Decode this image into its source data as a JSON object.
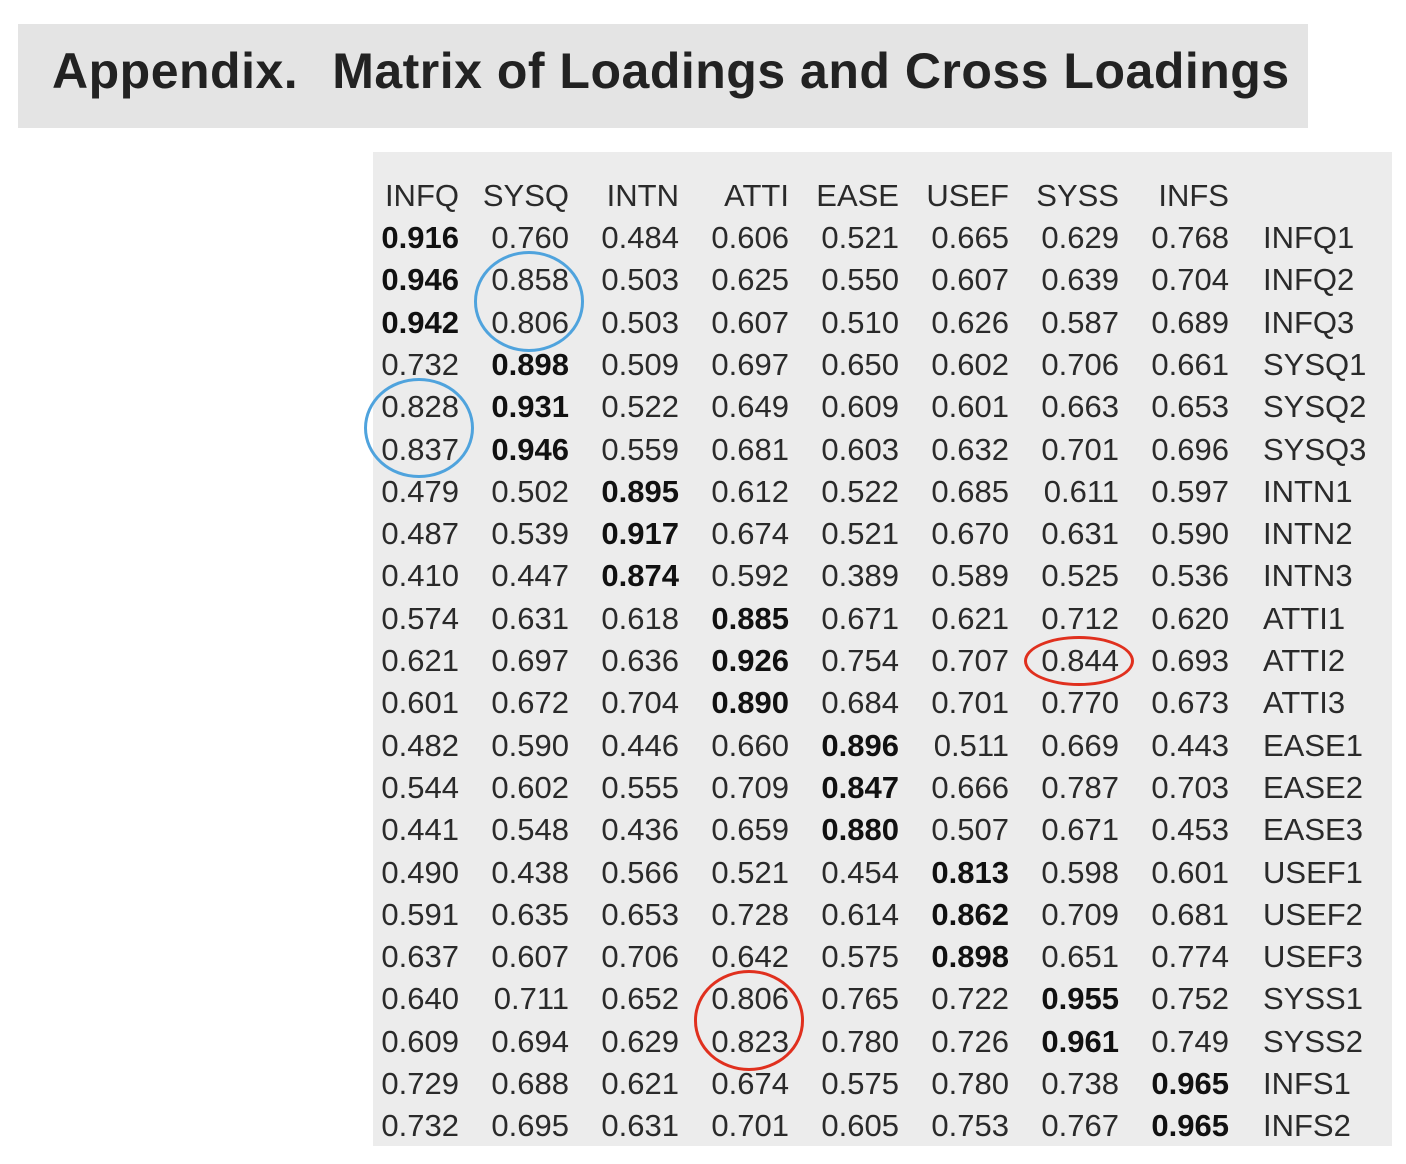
{
  "title": {
    "part_a": "Appendix.",
    "part_b": "Matrix of Loadings and Cross Loadings"
  },
  "table": {
    "headers": [
      "INFQ",
      "SYSQ",
      "INTN",
      "ATTI",
      "EASE",
      "USEF",
      "SYSS",
      "INFS"
    ],
    "rows": [
      {
        "label": "INFQ1",
        "values": [
          "0.916",
          "0.760",
          "0.484",
          "0.606",
          "0.521",
          "0.665",
          "0.629",
          "0.768"
        ],
        "bold": 0
      },
      {
        "label": "INFQ2",
        "values": [
          "0.946",
          "0.858",
          "0.503",
          "0.625",
          "0.550",
          "0.607",
          "0.639",
          "0.704"
        ],
        "bold": 0
      },
      {
        "label": "INFQ3",
        "values": [
          "0.942",
          "0.806",
          "0.503",
          "0.607",
          "0.510",
          "0.626",
          "0.587",
          "0.689"
        ],
        "bold": 0
      },
      {
        "label": "SYSQ1",
        "values": [
          "0.732",
          "0.898",
          "0.509",
          "0.697",
          "0.650",
          "0.602",
          "0.706",
          "0.661"
        ],
        "bold": 1
      },
      {
        "label": "SYSQ2",
        "values": [
          "0.828",
          "0.931",
          "0.522",
          "0.649",
          "0.609",
          "0.601",
          "0.663",
          "0.653"
        ],
        "bold": 1
      },
      {
        "label": "SYSQ3",
        "values": [
          "0.837",
          "0.946",
          "0.559",
          "0.681",
          "0.603",
          "0.632",
          "0.701",
          "0.696"
        ],
        "bold": 1
      },
      {
        "label": "INTN1",
        "values": [
          "0.479",
          "0.502",
          "0.895",
          "0.612",
          "0.522",
          "0.685",
          "0.611",
          "0.597"
        ],
        "bold": 2
      },
      {
        "label": "INTN2",
        "values": [
          "0.487",
          "0.539",
          "0.917",
          "0.674",
          "0.521",
          "0.670",
          "0.631",
          "0.590"
        ],
        "bold": 2
      },
      {
        "label": "INTN3",
        "values": [
          "0.410",
          "0.447",
          "0.874",
          "0.592",
          "0.389",
          "0.589",
          "0.525",
          "0.536"
        ],
        "bold": 2
      },
      {
        "label": "ATTI1",
        "values": [
          "0.574",
          "0.631",
          "0.618",
          "0.885",
          "0.671",
          "0.621",
          "0.712",
          "0.620"
        ],
        "bold": 3
      },
      {
        "label": "ATTI2",
        "values": [
          "0.621",
          "0.697",
          "0.636",
          "0.926",
          "0.754",
          "0.707",
          "0.844",
          "0.693"
        ],
        "bold": 3
      },
      {
        "label": "ATTI3",
        "values": [
          "0.601",
          "0.672",
          "0.704",
          "0.890",
          "0.684",
          "0.701",
          "0.770",
          "0.673"
        ],
        "bold": 3
      },
      {
        "label": "EASE1",
        "values": [
          "0.482",
          "0.590",
          "0.446",
          "0.660",
          "0.896",
          "0.511",
          "0.669",
          "0.443"
        ],
        "bold": 4
      },
      {
        "label": "EASE2",
        "values": [
          "0.544",
          "0.602",
          "0.555",
          "0.709",
          "0.847",
          "0.666",
          "0.787",
          "0.703"
        ],
        "bold": 4
      },
      {
        "label": "EASE3",
        "values": [
          "0.441",
          "0.548",
          "0.436",
          "0.659",
          "0.880",
          "0.507",
          "0.671",
          "0.453"
        ],
        "bold": 4
      },
      {
        "label": "USEF1",
        "values": [
          "0.490",
          "0.438",
          "0.566",
          "0.521",
          "0.454",
          "0.813",
          "0.598",
          "0.601"
        ],
        "bold": 5
      },
      {
        "label": "USEF2",
        "values": [
          "0.591",
          "0.635",
          "0.653",
          "0.728",
          "0.614",
          "0.862",
          "0.709",
          "0.681"
        ],
        "bold": 5
      },
      {
        "label": "USEF3",
        "values": [
          "0.637",
          "0.607",
          "0.706",
          "0.642",
          "0.575",
          "0.898",
          "0.651",
          "0.774"
        ],
        "bold": 5
      },
      {
        "label": "SYSS1",
        "values": [
          "0.640",
          "0.711",
          "0.652",
          "0.806",
          "0.765",
          "0.722",
          "0.955",
          "0.752"
        ],
        "bold": 6
      },
      {
        "label": "SYSS2",
        "values": [
          "0.609",
          "0.694",
          "0.629",
          "0.823",
          "0.780",
          "0.726",
          "0.961",
          "0.749"
        ],
        "bold": 6
      },
      {
        "label": "INFS1",
        "values": [
          "0.729",
          "0.688",
          "0.621",
          "0.674",
          "0.575",
          "0.780",
          "0.738",
          "0.965"
        ],
        "bold": 7
      },
      {
        "label": "INFS2",
        "values": [
          "0.732",
          "0.695",
          "0.631",
          "0.701",
          "0.605",
          "0.753",
          "0.767",
          "0.965"
        ],
        "bold": 7
      }
    ]
  },
  "highlights": [
    {
      "color": "#4fa3dd",
      "col": 1,
      "rows": [
        1,
        2
      ]
    },
    {
      "color": "#4fa3dd",
      "col": 0,
      "rows": [
        4,
        5
      ]
    },
    {
      "color": "#e0301e",
      "col": 6,
      "rows": [
        10
      ]
    },
    {
      "color": "#e0301e",
      "col": 3,
      "rows": [
        18,
        19
      ]
    }
  ]
}
